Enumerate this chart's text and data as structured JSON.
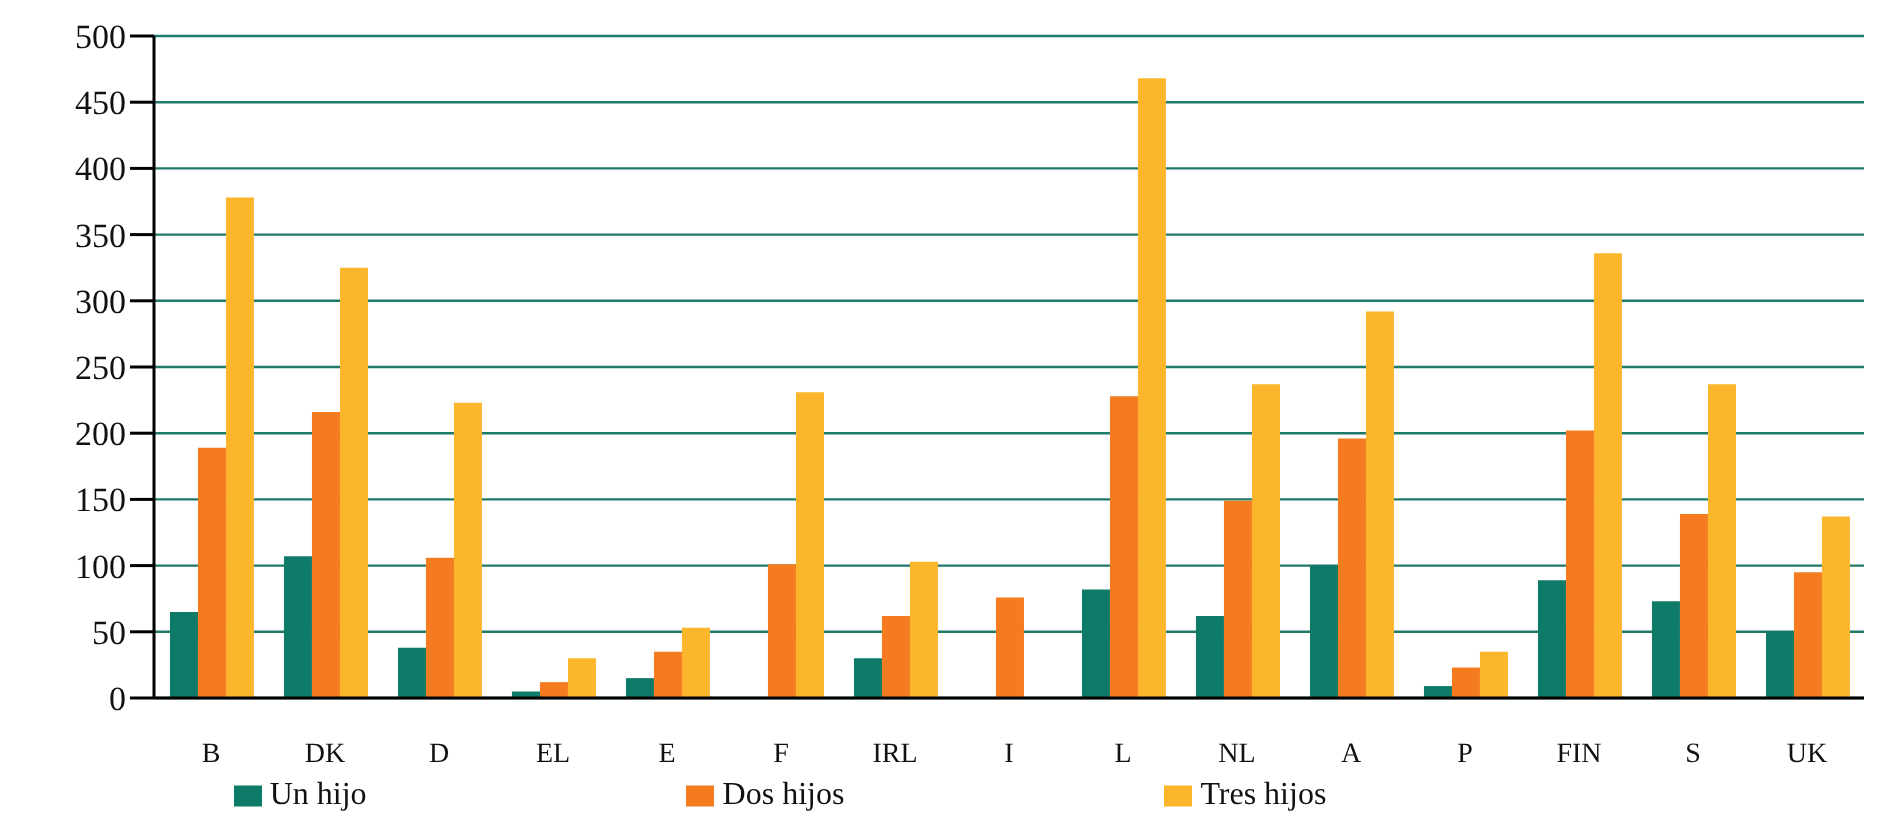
{
  "chart_data": {
    "type": "bar",
    "categories": [
      "B",
      "DK",
      "D",
      "EL",
      "E",
      "F",
      "IRL",
      "I",
      "L",
      "NL",
      "A",
      "P",
      "FIN",
      "S",
      "UK"
    ],
    "series": [
      {
        "name": "Un hijo",
        "color": "#0e7a68",
        "values": [
          65,
          107,
          38,
          5,
          15,
          null,
          30,
          null,
          82,
          62,
          100,
          9,
          89,
          73,
          50
        ]
      },
      {
        "name": "Dos hijos",
        "color": "#f47b20",
        "values": [
          189,
          216,
          106,
          12,
          35,
          101,
          62,
          76,
          228,
          149,
          196,
          23,
          202,
          139,
          95
        ]
      },
      {
        "name": "Tres hijos",
        "color": "#fbb62b",
        "values": [
          378,
          325,
          223,
          30,
          53,
          231,
          103,
          null,
          468,
          237,
          292,
          35,
          336,
          237,
          137
        ]
      }
    ],
    "ylim": [
      0,
      500
    ],
    "yticks": [
      0,
      50,
      100,
      150,
      200,
      250,
      300,
      350,
      400,
      450,
      500
    ],
    "grid": "y",
    "legend": "bottom"
  }
}
